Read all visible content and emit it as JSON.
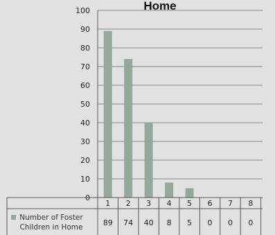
{
  "chart_data": {
    "type": "bar",
    "title": "Home",
    "categories": [
      "1",
      "2",
      "3",
      "4",
      "5",
      "6",
      "7",
      "8"
    ],
    "series": [
      {
        "name": "Number of Foster Children in Home",
        "values": [
          89,
          74,
          40,
          8,
          5,
          0,
          0,
          0
        ]
      }
    ],
    "ylim": [
      0,
      100
    ],
    "yticks": [
      0,
      10,
      20,
      30,
      40,
      50,
      60,
      70,
      80,
      90,
      100
    ],
    "grid": true,
    "legend": "data-table-left",
    "colors": {
      "bar": "#94a99a",
      "axis": "#555555",
      "grid": "#666666",
      "background": "#e2e2e2"
    }
  }
}
